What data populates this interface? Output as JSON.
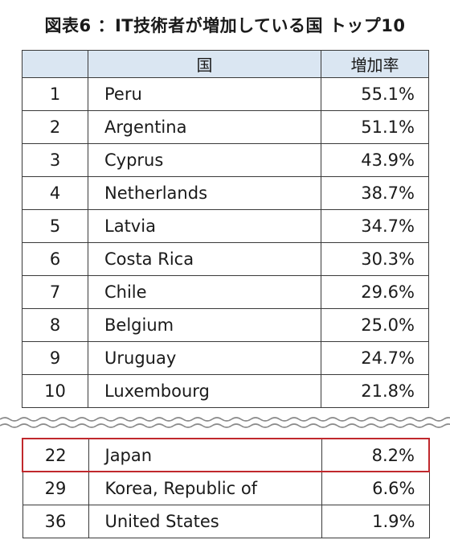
{
  "title": "図表6 ：IT技術者が増加している国 トップ10",
  "chart_data": {
    "type": "table",
    "columns": [
      "",
      "国",
      "増加率"
    ],
    "top_rows": [
      {
        "rank": "1",
        "country": "Peru",
        "rate": "55.1%"
      },
      {
        "rank": "2",
        "country": "Argentina",
        "rate": "51.1%"
      },
      {
        "rank": "3",
        "country": "Cyprus",
        "rate": "43.9%"
      },
      {
        "rank": "4",
        "country": "Netherlands",
        "rate": "38.7%"
      },
      {
        "rank": "5",
        "country": "Latvia",
        "rate": "34.7%"
      },
      {
        "rank": "6",
        "country": "Costa Rica",
        "rate": "30.3%"
      },
      {
        "rank": "7",
        "country": "Chile",
        "rate": "29.6%"
      },
      {
        "rank": "8",
        "country": "Belgium",
        "rate": "25.0%"
      },
      {
        "rank": "9",
        "country": "Uruguay",
        "rate": "24.7%"
      },
      {
        "rank": "10",
        "country": "Luxembourg",
        "rate": "21.8%"
      }
    ],
    "bottom_rows": [
      {
        "rank": "22",
        "country": "Japan",
        "rate": "8.2%",
        "highlighted": true
      },
      {
        "rank": "29",
        "country": "Korea, Republic of",
        "rate": "6.6%"
      },
      {
        "rank": "36",
        "country": "United States",
        "rate": "1.9%"
      }
    ]
  },
  "colors": {
    "header_background": "#dae6f2",
    "highlight_border": "#c0282d",
    "grid_line": "#3a3a3a"
  }
}
